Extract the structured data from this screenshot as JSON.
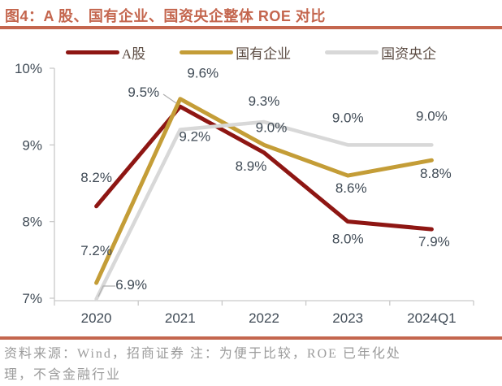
{
  "title": "图4：A 股、国有企业、国资央企整体 ROE 对比",
  "footer": {
    "line1": "资料来源：Wind，招商证券 注：为便于比较，ROE 已年化处",
    "line2": "理，不含金融行业"
  },
  "colors": {
    "accent": "#C4664E",
    "axis_line": "#C9C9C9",
    "text": "#404B56",
    "legend_text": "#5D4D44",
    "footer_text": "#9B9B9B",
    "leader_line": "#AFAFAF",
    "background": "#FFFFFF"
  },
  "chart_data": {
    "type": "line",
    "categories": [
      "2020",
      "2021",
      "2022",
      "2023",
      "2024Q1"
    ],
    "series": [
      {
        "name": "A股",
        "color": "#8E1613",
        "stroke_width": 5,
        "values": [
          8.2,
          9.5,
          8.9,
          8.0,
          7.9
        ],
        "labels": [
          "8.2%",
          "9.5%",
          "8.9%",
          "8.0%",
          "7.9%"
        ],
        "label_offsets": [
          [
            0,
            -36
          ],
          [
            -45,
            -18
          ],
          [
            -16,
            16
          ],
          [
            0,
            21
          ],
          [
            3,
            15
          ]
        ]
      },
      {
        "name": "国有企业",
        "color": "#C49D37",
        "stroke_width": 5,
        "values": [
          7.2,
          9.6,
          9.0,
          8.6,
          8.8
        ],
        "labels": [
          "7.2%",
          "9.6%",
          "9.0%",
          "8.6%",
          "8.8%"
        ],
        "label_offsets": [
          [
            0,
            -40
          ],
          [
            28,
            -32
          ],
          [
            9,
            -22
          ],
          [
            4,
            15
          ],
          [
            5,
            16
          ]
        ]
      },
      {
        "name": "国资央企",
        "color": "#D8D8D8",
        "stroke_width": 4.5,
        "values": [
          6.9,
          9.2,
          9.3,
          9.0,
          9.0
        ],
        "labels": [
          "6.9%",
          "9.2%",
          "9.3%",
          "9.0%",
          "9.0%"
        ],
        "label_offsets": [
          [
            43,
            -18
          ],
          [
            18,
            8
          ],
          [
            0,
            -26
          ],
          [
            0,
            -34
          ],
          [
            0,
            -36
          ]
        ]
      }
    ],
    "y_axis": {
      "ticks": [
        {
          "label": "10%",
          "value": 10
        },
        {
          "label": "9%",
          "value": 9
        },
        {
          "label": "8%",
          "value": 8
        },
        {
          "label": "7%",
          "value": 7
        }
      ],
      "ylim": [
        7,
        10
      ],
      "unit": "%"
    },
    "grid": false,
    "legend_position": "top",
    "leader_lines": [
      [
        [
          201,
          116
        ],
        [
          217,
          127
        ]
      ],
      [
        [
          121,
          365
        ],
        [
          127,
          352
        ],
        [
          142,
          352
        ]
      ]
    ]
  }
}
